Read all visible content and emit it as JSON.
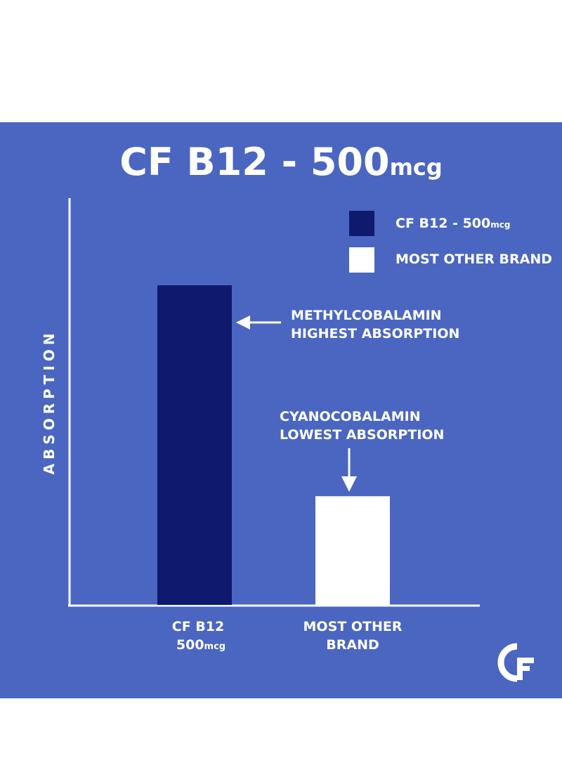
{
  "title": {
    "main": "CF B12 - 500",
    "unit": "mcg"
  },
  "legend": [
    {
      "label_main": "CF B12 - 500",
      "label_unit": "mcg",
      "color": "#0f1a6e"
    },
    {
      "label_main": "MOST OTHER BRAND",
      "label_unit": "",
      "color": "#ffffff"
    }
  ],
  "annotations": {
    "methyl_line1": "METHYLCOBALAMIN",
    "methyl_line2": "HIGHEST ABSORPTION",
    "cyano_line1": "CYANOCOBALAMIN",
    "cyano_line2": "LOWEST ABSORPTION"
  },
  "categories_display": [
    {
      "line1": "CF B12",
      "line2_main": "500",
      "line2_unit": "mcg"
    },
    {
      "line1": "MOST OTHER",
      "line2_main": "BRAND",
      "line2_unit": ""
    }
  ],
  "logo_text": "CF",
  "colors": {
    "background": "#4a66c1",
    "primary_bar": "#0f1a6e",
    "secondary_bar": "#ffffff",
    "axis": "#ffffff"
  },
  "chart_data": {
    "type": "bar",
    "title": "CF B12 - 500mcg",
    "categories": [
      "CF B12 500mcg",
      "MOST OTHER BRAND"
    ],
    "values": [
      100,
      34
    ],
    "ylabel": "ABSORPTION",
    "xlabel": "",
    "ylim": [
      0,
      100
    ],
    "grid": false,
    "legend_position": "top-right",
    "value_note_unlabeled": true
  }
}
